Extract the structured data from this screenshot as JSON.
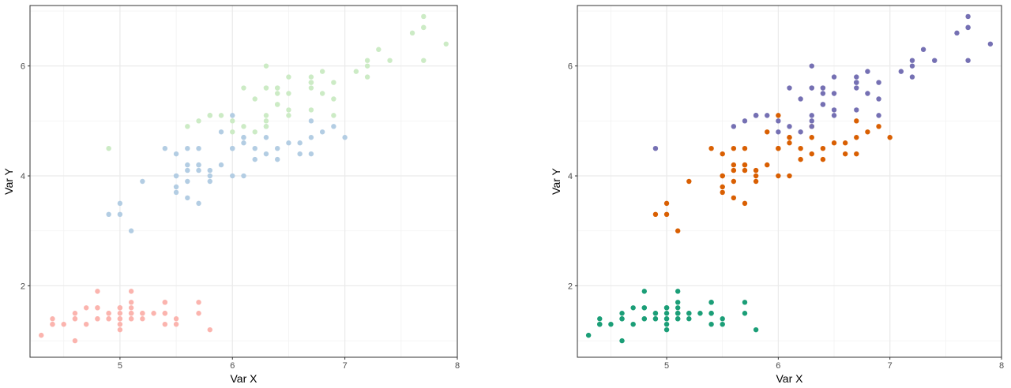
{
  "chart_data": [
    {
      "type": "scatter",
      "xlabel": "Var X",
      "ylabel": "Var Y",
      "xlim": [
        4.2,
        8.0
      ],
      "ylim": [
        0.7,
        7.1
      ],
      "xticks": [
        5,
        6,
        7,
        8
      ],
      "yticks": [
        2,
        4,
        6
      ],
      "grid": true,
      "series": [
        {
          "color": "#fbb4ae",
          "x": [
            5.1,
            4.9,
            4.7,
            4.6,
            5.0,
            5.4,
            4.6,
            5.0,
            4.4,
            4.9,
            5.4,
            4.8,
            4.8,
            4.3,
            5.8,
            5.7,
            5.4,
            5.1,
            5.7,
            5.1,
            5.4,
            5.1,
            4.6,
            5.1,
            4.8,
            5.0,
            5.0,
            5.2,
            5.2,
            4.7,
            4.8,
            5.4,
            5.2,
            5.5,
            4.9,
            5.0,
            5.5,
            4.9,
            4.4,
            5.1,
            5.0,
            4.5,
            4.4,
            5.0,
            5.1,
            4.8,
            5.1,
            4.6,
            5.3,
            5.0
          ],
          "y": [
            1.4,
            1.4,
            1.3,
            1.5,
            1.4,
            1.7,
            1.4,
            1.5,
            1.4,
            1.5,
            1.5,
            1.6,
            1.4,
            1.1,
            1.2,
            1.5,
            1.3,
            1.4,
            1.7,
            1.5,
            1.7,
            1.5,
            1.0,
            1.7,
            1.9,
            1.6,
            1.6,
            1.5,
            1.4,
            1.6,
            1.6,
            1.5,
            1.5,
            1.4,
            1.5,
            1.2,
            1.3,
            1.4,
            1.3,
            1.5,
            1.3,
            1.3,
            1.3,
            1.6,
            1.9,
            1.4,
            1.6,
            1.4,
            1.5,
            1.4
          ]
        },
        {
          "color": "#b3cde3",
          "x": [
            7.0,
            6.4,
            6.9,
            5.5,
            6.5,
            5.7,
            6.3,
            4.9,
            6.6,
            5.2,
            5.0,
            5.9,
            6.0,
            6.1,
            5.6,
            6.7,
            5.6,
            5.8,
            6.2,
            5.6,
            5.9,
            6.1,
            6.3,
            6.1,
            6.4,
            6.6,
            6.8,
            6.7,
            6.0,
            5.7,
            5.5,
            5.5,
            5.8,
            6.0,
            5.4,
            6.0,
            6.7,
            6.3,
            5.6,
            5.5,
            5.5,
            6.1,
            5.8,
            5.0,
            5.6,
            5.7,
            5.7,
            6.2,
            5.1,
            5.7
          ],
          "y": [
            4.7,
            4.5,
            4.9,
            4.0,
            4.6,
            4.5,
            4.7,
            3.3,
            4.6,
            3.9,
            3.5,
            4.2,
            4.0,
            4.7,
            3.6,
            4.4,
            4.5,
            4.1,
            4.5,
            3.9,
            4.8,
            4.0,
            4.9,
            4.7,
            4.3,
            4.4,
            4.8,
            5.0,
            4.5,
            3.5,
            3.8,
            3.7,
            3.9,
            5.1,
            4.5,
            4.5,
            4.7,
            4.4,
            4.1,
            4.0,
            4.4,
            4.6,
            4.0,
            3.3,
            4.2,
            4.2,
            4.2,
            4.3,
            3.0,
            4.1
          ]
        },
        {
          "color": "#ccebc5",
          "x": [
            6.3,
            5.8,
            7.1,
            6.3,
            6.5,
            7.6,
            4.9,
            7.3,
            6.7,
            7.2,
            6.5,
            6.4,
            6.8,
            5.7,
            5.8,
            6.4,
            6.5,
            7.7,
            7.7,
            6.0,
            6.9,
            5.6,
            7.7,
            6.3,
            6.7,
            7.2,
            6.2,
            6.1,
            6.4,
            7.2,
            7.4,
            7.9,
            6.4,
            6.3,
            6.1,
            7.7,
            6.3,
            6.4,
            6.0,
            6.9,
            6.7,
            6.9,
            5.8,
            6.8,
            6.7,
            6.7,
            6.3,
            6.5,
            6.2,
            5.9
          ],
          "y": [
            6.0,
            5.1,
            5.9,
            5.6,
            5.8,
            6.6,
            4.5,
            6.3,
            5.8,
            6.1,
            5.1,
            5.3,
            5.5,
            5.0,
            5.1,
            5.3,
            5.5,
            6.7,
            6.9,
            5.0,
            5.7,
            4.9,
            6.7,
            4.9,
            5.7,
            6.0,
            4.8,
            4.9,
            5.6,
            5.8,
            6.1,
            6.4,
            5.6,
            5.1,
            5.6,
            6.1,
            5.6,
            5.5,
            4.8,
            5.4,
            5.6,
            5.1,
            5.1,
            5.9,
            5.7,
            5.2,
            5.0,
            5.2,
            5.4,
            5.1
          ]
        }
      ]
    },
    {
      "type": "scatter",
      "xlabel": "Var X",
      "ylabel": "Var Y",
      "xlim": [
        4.2,
        8.0
      ],
      "ylim": [
        0.7,
        7.1
      ],
      "xticks": [
        5,
        6,
        7,
        8
      ],
      "yticks": [
        2,
        4,
        6
      ],
      "grid": true,
      "series": [
        {
          "color": "#1b9e77",
          "x": [
            5.1,
            4.9,
            4.7,
            4.6,
            5.0,
            5.4,
            4.6,
            5.0,
            4.4,
            4.9,
            5.4,
            4.8,
            4.8,
            4.3,
            5.8,
            5.7,
            5.4,
            5.1,
            5.7,
            5.1,
            5.4,
            5.1,
            4.6,
            5.1,
            4.8,
            5.0,
            5.0,
            5.2,
            5.2,
            4.7,
            4.8,
            5.4,
            5.2,
            5.5,
            4.9,
            5.0,
            5.5,
            4.9,
            4.4,
            5.1,
            5.0,
            4.5,
            4.4,
            5.0,
            5.1,
            4.8,
            5.1,
            4.6,
            5.3,
            5.0
          ],
          "y": [
            1.4,
            1.4,
            1.3,
            1.5,
            1.4,
            1.7,
            1.4,
            1.5,
            1.4,
            1.5,
            1.5,
            1.6,
            1.4,
            1.1,
            1.2,
            1.5,
            1.3,
            1.4,
            1.7,
            1.5,
            1.7,
            1.5,
            1.0,
            1.7,
            1.9,
            1.6,
            1.6,
            1.5,
            1.4,
            1.6,
            1.6,
            1.5,
            1.5,
            1.4,
            1.5,
            1.2,
            1.3,
            1.4,
            1.3,
            1.5,
            1.3,
            1.3,
            1.3,
            1.6,
            1.9,
            1.4,
            1.6,
            1.4,
            1.5,
            1.4
          ]
        },
        {
          "color": "#d95f02",
          "x": [
            7.0,
            6.4,
            6.9,
            5.5,
            6.5,
            5.7,
            6.3,
            4.9,
            6.6,
            5.2,
            5.0,
            5.9,
            6.0,
            6.1,
            5.6,
            6.7,
            5.6,
            5.8,
            6.2,
            5.6,
            5.9,
            6.1,
            6.3,
            6.1,
            6.4,
            6.6,
            6.8,
            6.7,
            6.0,
            5.7,
            5.5,
            5.5,
            5.8,
            6.0,
            5.4,
            6.0,
            6.7,
            6.3,
            5.6,
            5.5,
            5.5,
            6.1,
            5.8,
            5.0,
            5.6,
            5.7,
            5.7,
            6.2,
            5.1,
            5.7
          ],
          "y": [
            4.7,
            4.5,
            4.9,
            4.0,
            4.6,
            4.5,
            4.7,
            3.3,
            4.6,
            3.9,
            3.5,
            4.2,
            4.0,
            4.7,
            3.6,
            4.4,
            4.5,
            4.1,
            4.5,
            3.9,
            4.8,
            4.0,
            4.9,
            4.7,
            4.3,
            4.4,
            4.8,
            5.0,
            4.5,
            3.5,
            3.8,
            3.7,
            3.9,
            5.1,
            4.5,
            4.5,
            4.7,
            4.4,
            4.1,
            4.0,
            4.4,
            4.6,
            4.0,
            3.3,
            4.2,
            4.2,
            4.2,
            4.3,
            3.0,
            4.1
          ]
        },
        {
          "color": "#7570b3",
          "x": [
            6.3,
            5.8,
            7.1,
            6.3,
            6.5,
            7.6,
            4.9,
            7.3,
            6.7,
            7.2,
            6.5,
            6.4,
            6.8,
            5.7,
            5.8,
            6.4,
            6.5,
            7.7,
            7.7,
            6.0,
            6.9,
            5.6,
            7.7,
            6.3,
            6.7,
            7.2,
            6.2,
            6.1,
            6.4,
            7.2,
            7.4,
            7.9,
            6.4,
            6.3,
            6.1,
            7.7,
            6.3,
            6.4,
            6.0,
            6.9,
            6.7,
            6.9,
            5.8,
            6.8,
            6.7,
            6.7,
            6.3,
            6.5,
            6.2,
            5.9
          ],
          "y": [
            6.0,
            5.1,
            5.9,
            5.6,
            5.8,
            6.6,
            4.5,
            6.3,
            5.8,
            6.1,
            5.1,
            5.3,
            5.5,
            5.0,
            5.1,
            5.3,
            5.5,
            6.7,
            6.9,
            5.0,
            5.7,
            4.9,
            6.7,
            4.9,
            5.7,
            6.0,
            4.8,
            4.9,
            5.6,
            5.8,
            6.1,
            6.4,
            5.6,
            5.1,
            5.6,
            6.1,
            5.6,
            5.5,
            4.8,
            5.4,
            5.6,
            5.1,
            5.1,
            5.9,
            5.7,
            5.2,
            5.0,
            5.2,
            5.4,
            5.1
          ]
        }
      ]
    }
  ]
}
